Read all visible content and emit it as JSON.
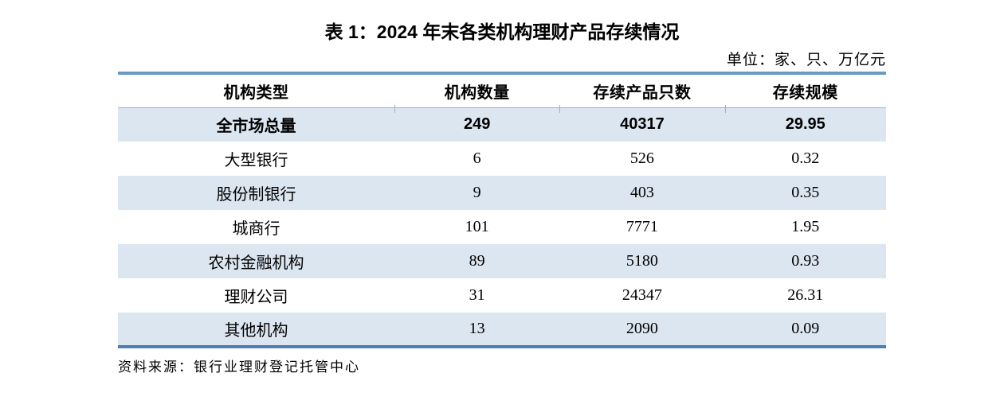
{
  "title": "表 1：2024 年末各类机构理财产品存续情况",
  "unit_note": "单位：家、只、万亿元",
  "table": {
    "columns": [
      "机构类型",
      "机构数量",
      "存续产品只数",
      "存续规模"
    ],
    "rows": [
      {
        "type": "全市场总量",
        "count": "249",
        "products": "40317",
        "scale": "29.95",
        "emphasis": true
      },
      {
        "type": "大型银行",
        "count": "6",
        "products": "526",
        "scale": "0.32",
        "emphasis": false
      },
      {
        "type": "股份制银行",
        "count": "9",
        "products": "403",
        "scale": "0.35",
        "emphasis": false
      },
      {
        "type": "城商行",
        "count": "101",
        "products": "7771",
        "scale": "1.95",
        "emphasis": false
      },
      {
        "type": "农村金融机构",
        "count": "89",
        "products": "5180",
        "scale": "0.93",
        "emphasis": false
      },
      {
        "type": "理财公司",
        "count": "31",
        "products": "24347",
        "scale": "26.31",
        "emphasis": false
      },
      {
        "type": "其他机构",
        "count": "13",
        "products": "2090",
        "scale": "0.09",
        "emphasis": false
      }
    ]
  },
  "source_note": "资料来源：银行业理财登记托管中心",
  "colors": {
    "band_fill": "#dce6f1",
    "top_border": "#6a99c5",
    "header_rule": "#8fb4d9",
    "bottom_border": "#4d7fb5",
    "text_color": "#000000"
  }
}
